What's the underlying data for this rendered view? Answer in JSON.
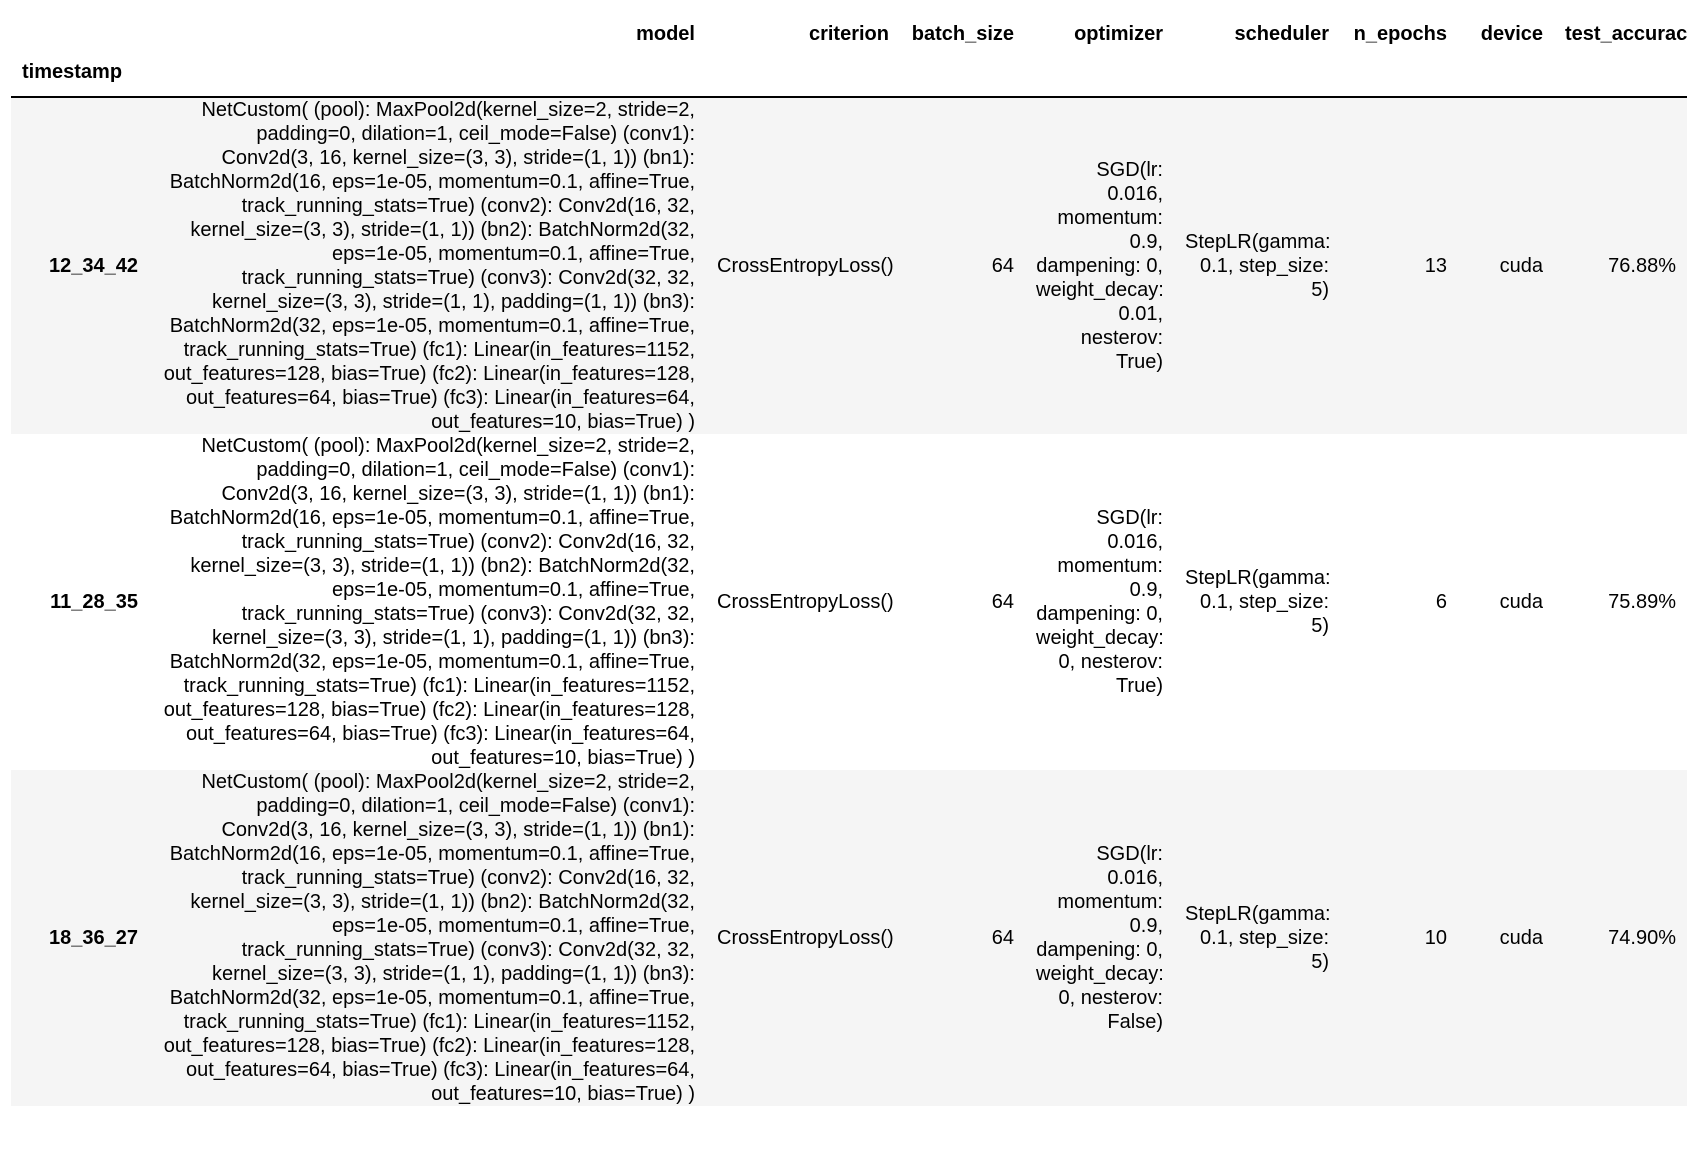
{
  "table": {
    "index_name": "timestamp",
    "columns": [
      "model",
      "criterion",
      "batch_size",
      "optimizer",
      "scheduler",
      "n_epochs",
      "device",
      "test_accuracy"
    ],
    "rows": [
      {
        "timestamp": "12_34_42",
        "model": "NetCustom( (pool): MaxPool2d(kernel_size=2, stride=2, padding=0, dilation=1, ceil_mode=False) (conv1): Conv2d(3, 16, kernel_size=(3, 3), stride=(1, 1)) (bn1): BatchNorm2d(16, eps=1e-05, momentum=0.1, affine=True, track_running_stats=True) (conv2): Conv2d(16, 32, kernel_size=(3, 3), stride=(1, 1)) (bn2): BatchNorm2d(32, eps=1e-05, momentum=0.1, affine=True, track_running_stats=True) (conv3): Conv2d(32, 32, kernel_size=(3, 3), stride=(1, 1), padding=(1, 1)) (bn3): BatchNorm2d(32, eps=1e-05, momentum=0.1, affine=True, track_running_stats=True) (fc1): Linear(in_features=1152, out_features=128, bias=True) (fc2): Linear(in_features=128, out_features=64, bias=True) (fc3): Linear(in_features=64, out_features=10, bias=True) )",
        "criterion": "CrossEntropyLoss()",
        "batch_size": "64",
        "optimizer": "SGD(lr: 0.016, momentum: 0.9, dampening: 0, weight_decay: 0.01, nesterov: True)",
        "scheduler": "StepLR(gamma: 0.1, step_size: 5)",
        "n_epochs": "13",
        "device": "cuda",
        "test_accuracy": "76.88%"
      },
      {
        "timestamp": "11_28_35",
        "model": "NetCustom( (pool): MaxPool2d(kernel_size=2, stride=2, padding=0, dilation=1, ceil_mode=False) (conv1): Conv2d(3, 16, kernel_size=(3, 3), stride=(1, 1)) (bn1): BatchNorm2d(16, eps=1e-05, momentum=0.1, affine=True, track_running_stats=True) (conv2): Conv2d(16, 32, kernel_size=(3, 3), stride=(1, 1)) (bn2): BatchNorm2d(32, eps=1e-05, momentum=0.1, affine=True, track_running_stats=True) (conv3): Conv2d(32, 32, kernel_size=(3, 3), stride=(1, 1), padding=(1, 1)) (bn3): BatchNorm2d(32, eps=1e-05, momentum=0.1, affine=True, track_running_stats=True) (fc1): Linear(in_features=1152, out_features=128, bias=True) (fc2): Linear(in_features=128, out_features=64, bias=True) (fc3): Linear(in_features=64, out_features=10, bias=True) )",
        "criterion": "CrossEntropyLoss()",
        "batch_size": "64",
        "optimizer": "SGD(lr: 0.016, momentum: 0.9, dampening: 0, weight_decay: 0, nesterov: True)",
        "scheduler": "StepLR(gamma: 0.1, step_size: 5)",
        "n_epochs": "6",
        "device": "cuda",
        "test_accuracy": "75.89%"
      },
      {
        "timestamp": "18_36_27",
        "model": "NetCustom( (pool): MaxPool2d(kernel_size=2, stride=2, padding=0, dilation=1, ceil_mode=False) (conv1): Conv2d(3, 16, kernel_size=(3, 3), stride=(1, 1)) (bn1): BatchNorm2d(16, eps=1e-05, momentum=0.1, affine=True, track_running_stats=True) (conv2): Conv2d(16, 32, kernel_size=(3, 3), stride=(1, 1)) (bn2): BatchNorm2d(32, eps=1e-05, momentum=0.1, affine=True, track_running_stats=True) (conv3): Conv2d(32, 32, kernel_size=(3, 3), stride=(1, 1), padding=(1, 1)) (bn3): BatchNorm2d(32, eps=1e-05, momentum=0.1, affine=True, track_running_stats=True) (fc1): Linear(in_features=1152, out_features=128, bias=True) (fc2): Linear(in_features=128, out_features=64, bias=True) (fc3): Linear(in_features=64, out_features=10, bias=True) )",
        "criterion": "CrossEntropyLoss()",
        "batch_size": "64",
        "optimizer": "SGD(lr: 0.016, momentum: 0.9, dampening: 0, weight_decay: 0, nesterov: False)",
        "scheduler": "StepLR(gamma: 0.1, step_size: 5)",
        "n_epochs": "10",
        "device": "cuda",
        "test_accuracy": "74.90%"
      }
    ]
  }
}
